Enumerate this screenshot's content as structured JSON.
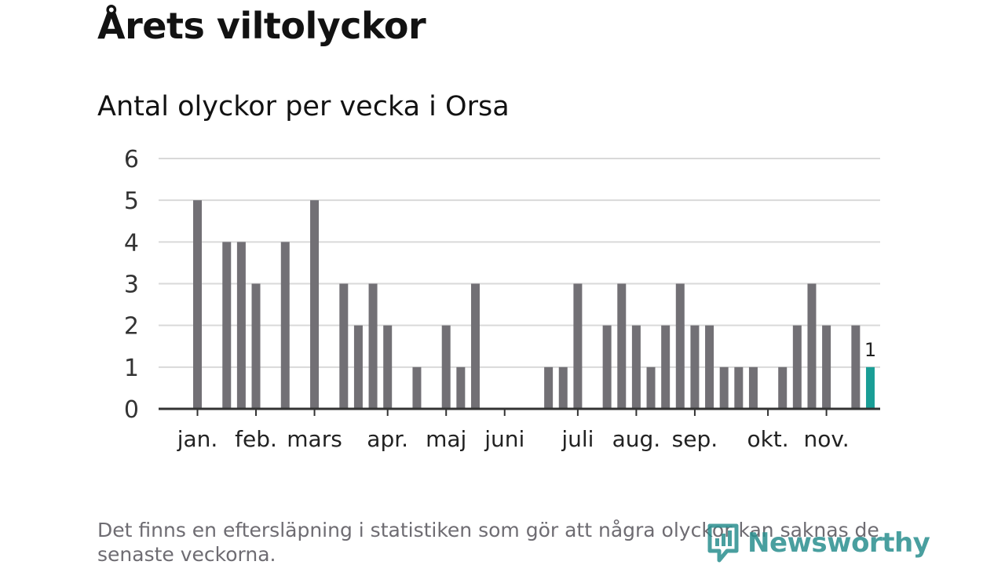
{
  "title": "Årets viltolyckor",
  "subtitle": "Antal olyckor per vecka i Orsa",
  "note": "Det finns en eftersläpning i statistiken som gör att några olyckor kan saknas de senaste veckorna.",
  "brand": {
    "name": "Newsworthy",
    "color": "#2a8f8f"
  },
  "chart_data": {
    "type": "bar",
    "title": "Antal olyckor per vecka i Orsa",
    "xlabel": "",
    "ylabel": "",
    "ylim": [
      0,
      6
    ],
    "y_ticks": [
      0,
      1,
      2,
      3,
      4,
      5,
      6
    ],
    "grid": true,
    "bar_color": "#727075",
    "highlight_color": "#1a9e96",
    "weeks": [
      1,
      2,
      3,
      4,
      5,
      6,
      7,
      8,
      9,
      10,
      11,
      12,
      13,
      14,
      15,
      16,
      17,
      18,
      19,
      20,
      21,
      22,
      23,
      24,
      25,
      26,
      27,
      28,
      29,
      30,
      31,
      32,
      33,
      34,
      35,
      36,
      37,
      38,
      39,
      40,
      41,
      42,
      43,
      44,
      45,
      46,
      47
    ],
    "values": [
      5,
      0,
      4,
      4,
      3,
      0,
      4,
      0,
      5,
      0,
      3,
      2,
      3,
      2,
      0,
      1,
      0,
      2,
      1,
      3,
      0,
      0,
      0,
      0,
      1,
      1,
      3,
      0,
      2,
      3,
      2,
      1,
      2,
      3,
      2,
      2,
      1,
      1,
      1,
      0,
      1,
      2,
      3,
      2,
      0,
      2,
      1
    ],
    "highlight_index": 46,
    "highlight_label": "1",
    "month_labels": [
      {
        "label": "jan.",
        "week": 1
      },
      {
        "label": "feb.",
        "week": 5
      },
      {
        "label": "mars",
        "week": 9
      },
      {
        "label": "apr.",
        "week": 14
      },
      {
        "label": "maj",
        "week": 18
      },
      {
        "label": "juni",
        "week": 22
      },
      {
        "label": "juli",
        "week": 27
      },
      {
        "label": "aug.",
        "week": 31
      },
      {
        "label": "sep.",
        "week": 35
      },
      {
        "label": "okt.",
        "week": 40
      },
      {
        "label": "nov.",
        "week": 44
      }
    ]
  }
}
